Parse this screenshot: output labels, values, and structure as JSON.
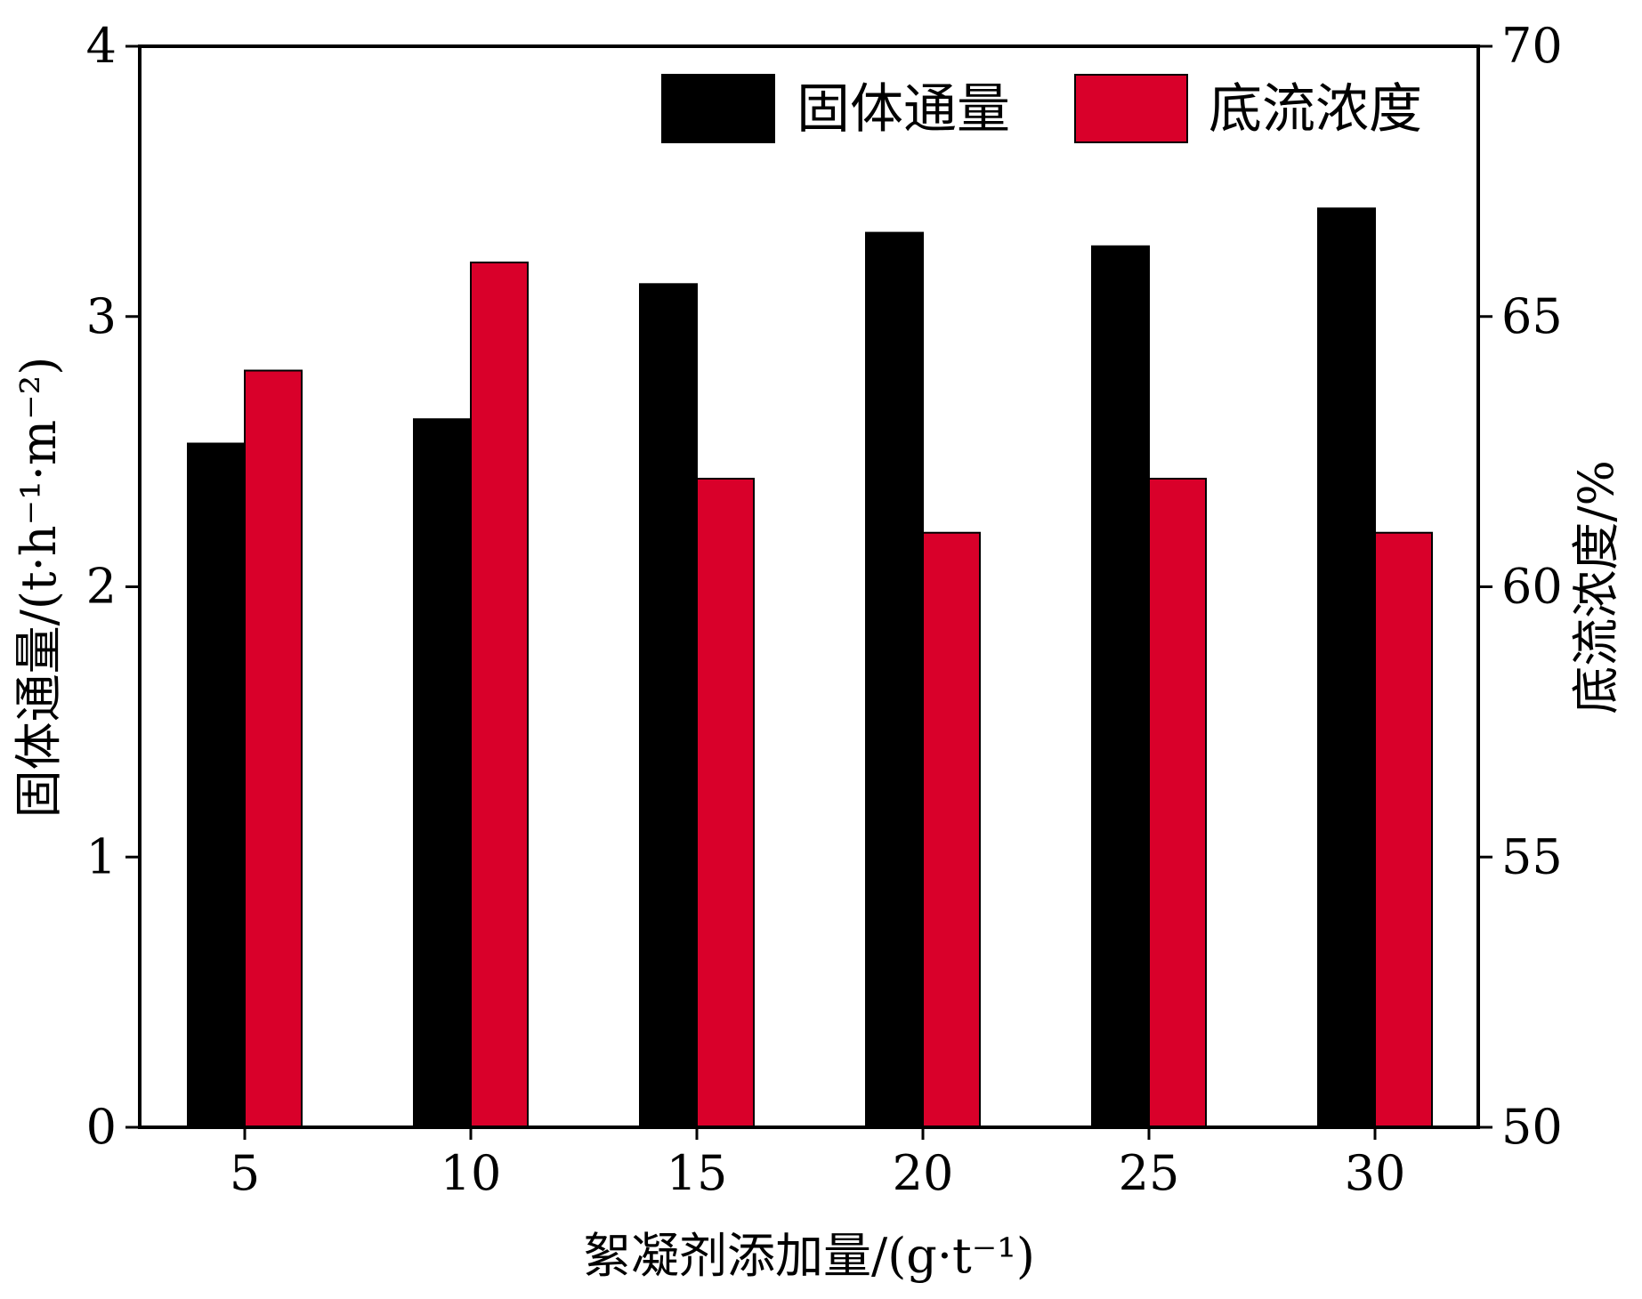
{
  "chart_data": {
    "type": "bar",
    "xlabel": "絮凝剂添加量/(g·t⁻¹)",
    "ylabel_left": "固体通量/(t·h⁻¹·m⁻²)",
    "ylabel_right": "底流浓度/%",
    "categories": [
      "5",
      "10",
      "15",
      "20",
      "25",
      "30"
    ],
    "ylim_left": [
      0,
      4
    ],
    "ylim_right": [
      50,
      70
    ],
    "yticks_left": [
      "0",
      "1",
      "2",
      "3",
      "4"
    ],
    "yticks_right": [
      "50",
      "55",
      "60",
      "65",
      "70"
    ],
    "grid": false,
    "legend_position": "top-right",
    "series": [
      {
        "name": "固体通量",
        "axis": "left",
        "color": "#000000",
        "values": [
          2.53,
          2.62,
          3.12,
          3.31,
          3.26,
          3.4
        ]
      },
      {
        "name": "底流浓度",
        "axis": "right",
        "color": "#d9002a",
        "values": [
          64.0,
          66.0,
          62.0,
          61.0,
          62.0,
          61.0
        ]
      }
    ]
  }
}
